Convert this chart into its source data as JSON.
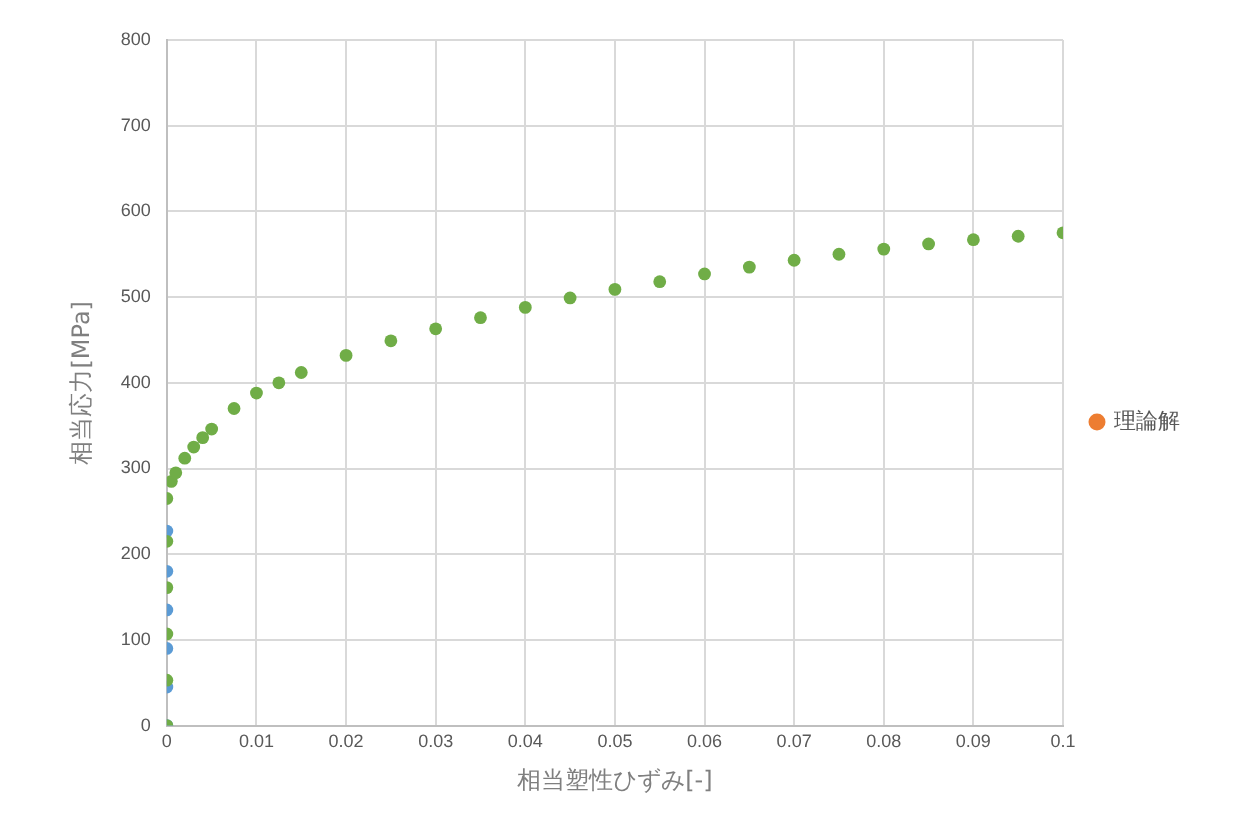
{
  "chart_data": {
    "type": "scatter",
    "xlabel": "相当塑性ひずみ[-]",
    "ylabel": "相当応力[MPa]",
    "xlim": [
      0,
      0.1
    ],
    "xticks": [
      0,
      0.01,
      0.02,
      0.03,
      0.04,
      0.05,
      0.06,
      0.07,
      0.08,
      0.09,
      0.1
    ],
    "ylim": [
      0,
      800
    ],
    "yticks": [
      0,
      100,
      200,
      300,
      400,
      500,
      600,
      700,
      800
    ],
    "grid": true,
    "legend": "right",
    "marker": "circle",
    "series": [
      {
        "name": "理論解",
        "color": "#ed7d31"
      },
      {
        "color": "#5b9bd5",
        "x": [
          0,
          0,
          0,
          0,
          0,
          0
        ],
        "values": [
          0,
          45,
          90,
          135,
          180,
          227
        ]
      },
      {
        "color": "#70ad47",
        "x": [
          0,
          0,
          0,
          0,
          0,
          0,
          0.0005,
          0.001,
          0.002,
          0.003,
          0.004,
          0.005,
          0.0075,
          0.01,
          0.0125,
          0.015,
          0.02,
          0.025,
          0.03,
          0.035,
          0.04,
          0.045,
          0.05,
          0.055,
          0.06,
          0.065,
          0.07,
          0.075,
          0.08,
          0.085,
          0.09,
          0.095,
          0.1
        ],
        "values": [
          0,
          53,
          107,
          161,
          215,
          265,
          285,
          295,
          312,
          325,
          336,
          346,
          370,
          388,
          400,
          412,
          432,
          449,
          463,
          476,
          488,
          499,
          509,
          518,
          527,
          535,
          543,
          550,
          556,
          562,
          567,
          571,
          575
        ]
      }
    ]
  }
}
